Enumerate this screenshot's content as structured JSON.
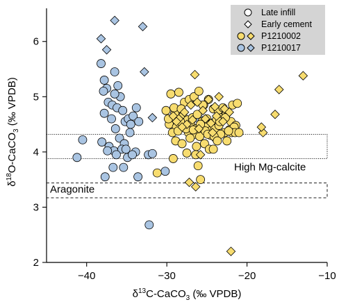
{
  "chart_data": {
    "type": "scatter",
    "xlim": [
      -45,
      -10
    ],
    "ylim": [
      2,
      6.6
    ],
    "x_ticks": [
      {
        "v": -40,
        "label": "−40"
      },
      {
        "v": -30,
        "label": "−30"
      },
      {
        "v": -20,
        "label": "−20"
      },
      {
        "v": -10,
        "label": "−10"
      }
    ],
    "y_ticks": [
      {
        "v": 2,
        "label": "2"
      },
      {
        "v": 3,
        "label": "3"
      },
      {
        "v": 4,
        "label": "4"
      },
      {
        "v": 5,
        "label": "5"
      },
      {
        "v": 6,
        "label": "6"
      }
    ],
    "xlabel": {
      "pre": "δ",
      "sup": "13",
      "mid": "C-CaCO",
      "sub": "3",
      "post": " (‰ VPDB)"
    },
    "ylabel": {
      "pre": "δ",
      "sup": "18",
      "mid": "O-CaCO",
      "sub": "3",
      "post": " (‰ VPDB)"
    },
    "grid": false,
    "bands": [
      {
        "label": "High Mg-calcite",
        "y_range": [
          3.88,
          4.32
        ],
        "x_range": [
          -45,
          -10
        ],
        "style": "dotted"
      },
      {
        "label": "Aragonite",
        "y_range": [
          3.17,
          3.44
        ],
        "x_range": [
          -45,
          -10
        ],
        "style": "dashed"
      }
    ],
    "legend": {
      "position": "top-right",
      "entries": [
        {
          "label": "Late infill",
          "marker": "circle",
          "color": "#ffffff"
        },
        {
          "label": "Early cement",
          "marker": "diamond",
          "color": "#ffffff"
        },
        {
          "label": "P1210002",
          "marker": "circle+diamond",
          "color": "#f7dc6f"
        },
        {
          "label": "P1210017",
          "marker": "circle+diamond",
          "color": "#a9c4e2"
        }
      ]
    },
    "series": [
      {
        "name": "P1210017",
        "marker": "circle",
        "color": "#a9c4e2",
        "x": [
          -38.2,
          -37.8,
          -37.5,
          -37.3,
          -36.8,
          -36.5,
          -36.2,
          -35.8,
          -35.5,
          -35.2,
          -34.8,
          -34.5,
          -34.2,
          -33.8,
          -33.5,
          -37.8,
          -36.9,
          -36.4,
          -35.9,
          -35.3,
          -34.6,
          -37.2,
          -36.6,
          -35.6,
          -34.9,
          -33.9,
          -40.5,
          -41.2,
          -38.1,
          -37.4,
          -36.3,
          -35.1,
          -37.7,
          -36.7,
          -35.4,
          -34.3,
          -32.3,
          -31.8,
          -33.6,
          -30.2,
          -26.0,
          -32.2,
          -36.5,
          -37.9,
          -36.1
        ],
        "y": [
          5.6,
          5.3,
          5.15,
          4.9,
          4.85,
          5.45,
          4.8,
          5.0,
          4.75,
          4.55,
          4.6,
          4.5,
          4.65,
          4.8,
          4.55,
          4.7,
          4.6,
          4.42,
          4.25,
          4.15,
          4.35,
          4.1,
          4.02,
          4.05,
          3.9,
          4.0,
          4.22,
          3.9,
          4.18,
          4.02,
          3.95,
          4.05,
          3.55,
          3.72,
          3.72,
          3.95,
          3.95,
          3.97,
          3.55,
          3.65,
          4.6,
          2.68,
          5.05,
          5.1,
          5.2
        ]
      },
      {
        "name": "P1210017",
        "marker": "diamond",
        "color": "#a9c4e2",
        "x": [
          -36.5,
          -38.2,
          -37.5,
          -33.0,
          -32.8,
          -31.8
        ],
        "y": [
          6.38,
          6.05,
          5.85,
          6.27,
          5.45,
          4.62
        ]
      },
      {
        "name": "P1210002",
        "marker": "circle",
        "color": "#f7dc6f",
        "x": [
          -29.5,
          -28.5,
          -27.8,
          -27.2,
          -26.6,
          -26.0,
          -25.4,
          -24.8,
          -24.2,
          -23.6,
          -23.0,
          -22.4,
          -21.8,
          -21.2,
          -29.0,
          -28.0,
          -27.4,
          -26.8,
          -26.2,
          -25.6,
          -25.0,
          -24.4,
          -23.8,
          -23.2,
          -22.6,
          -22.0,
          -21.4,
          -29.7,
          -28.8,
          -27.9,
          -27.0,
          -26.4,
          -25.7,
          -25.1,
          -24.6,
          -24.0,
          -23.5,
          -22.8,
          -22.2,
          -21.6,
          -28.3,
          -27.3,
          -26.5,
          -25.9,
          -25.2,
          -24.5,
          -23.9,
          -23.3,
          -22.5,
          -21.9,
          -29.3,
          -28.6,
          -27.6,
          -26.7,
          -25.8,
          -24.9,
          -24.1,
          -23.4,
          -22.7,
          -21.5,
          -29.8,
          -28.9,
          -28.1,
          -27.1,
          -26.3,
          -25.3,
          -24.7,
          -23.7,
          -22.3,
          -21.0,
          -29.1,
          -28.2,
          -25.5,
          -30.1,
          -29.2,
          -27.5,
          -26.1,
          -31.2,
          -25.8,
          -24.2,
          -26.4
        ],
        "y": [
          5.05,
          5.08,
          4.9,
          4.95,
          5.0,
          5.1,
          4.85,
          4.95,
          4.78,
          4.75,
          4.8,
          4.72,
          4.85,
          4.88,
          4.7,
          4.65,
          4.58,
          4.62,
          4.68,
          4.55,
          4.6,
          4.52,
          4.58,
          4.62,
          4.68,
          4.55,
          4.48,
          4.5,
          4.45,
          4.48,
          4.5,
          4.42,
          4.4,
          4.45,
          4.38,
          4.42,
          4.48,
          4.35,
          4.4,
          4.45,
          4.55,
          4.35,
          4.32,
          4.28,
          4.38,
          4.3,
          4.25,
          4.32,
          4.2,
          4.35,
          4.35,
          4.38,
          4.42,
          4.4,
          4.5,
          4.32,
          4.28,
          4.55,
          4.62,
          4.35,
          4.6,
          4.2,
          4.15,
          4.25,
          4.1,
          4.15,
          4.05,
          4.2,
          4.38,
          4.35,
          4.8,
          4.78,
          4.85,
          4.75,
          3.88,
          3.98,
          3.75,
          3.62,
          3.5,
          4.05,
          3.95
        ]
      },
      {
        "name": "P1210002",
        "marker": "diamond",
        "color": "#f7dc6f",
        "x": [
          -26.5,
          -13.0,
          -16.0,
          -18.0,
          -18.2,
          -16.5,
          -22.0,
          -26.4,
          -29.2,
          -28.5,
          -27.8,
          -27.0,
          -26.2,
          -25.5,
          -24.8,
          -24.0,
          -23.5,
          -22.8,
          -22.2,
          -28.8,
          -27.5,
          -26.8,
          -25.2,
          -24.5,
          -23.8,
          -23.0,
          -28.1,
          -26.0,
          -24.3,
          -25.8,
          -27.2
        ],
        "y": [
          5.4,
          5.38,
          5.13,
          4.35,
          4.45,
          4.68,
          2.2,
          3.37,
          4.65,
          4.6,
          4.72,
          4.85,
          4.9,
          4.75,
          4.95,
          4.82,
          5.0,
          4.78,
          4.72,
          4.55,
          4.5,
          4.58,
          4.6,
          4.52,
          4.65,
          4.55,
          4.45,
          4.42,
          4.35,
          3.95,
          3.45
        ]
      }
    ]
  }
}
